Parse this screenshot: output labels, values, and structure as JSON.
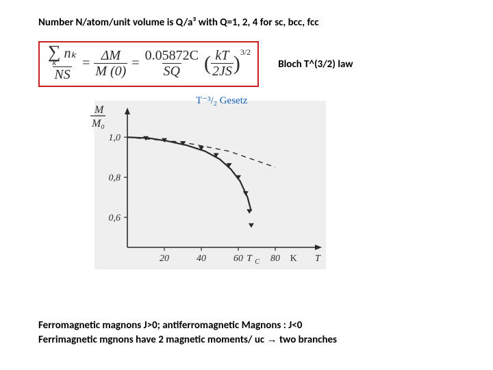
{
  "heading": "Number N/atom/unit volume is Q/a³ with Q=1, 2, 4 for sc, bcc, fcc",
  "formula": {
    "border_color": "#c81e1e",
    "text_color": "#2a2a2a",
    "lhs_num_sigma_sub": "k",
    "lhs_num_rhs": "nₖ",
    "lhs_den": "NS",
    "eq": "=",
    "mid_num": "ΔM",
    "mid_den": "M (0)",
    "rhs_coeff": "0.05872C",
    "rhs_den": "SQ",
    "inner_num": "kT",
    "inner_den": "2JS",
    "exponent": "3/2"
  },
  "side_label": "Bloch T^(3/2) law",
  "handwritten": {
    "text": "T⁻³/₂  Gesetz",
    "color": "#1560b8"
  },
  "graph": {
    "type": "line",
    "y_axis_label": "M",
    "y_axis_label_den": "M₀",
    "y_ticks": [
      0.6,
      0.8,
      1.0
    ],
    "y_tick_labels": [
      "0,6",
      "0,8",
      "1,0"
    ],
    "x_ticks": [
      20,
      40,
      60,
      80
    ],
    "x_tick_labels": [
      "20",
      "40",
      "60",
      "80"
    ],
    "x_unit": "K",
    "x_axis_var": "T",
    "xlim": [
      0,
      100
    ],
    "ylim": [
      0.45,
      1.1
    ],
    "tc_label": "T_C",
    "tc_x": 66,
    "curve_points": [
      {
        "x": 0,
        "y": 1.0
      },
      {
        "x": 12,
        "y": 0.995
      },
      {
        "x": 22,
        "y": 0.98
      },
      {
        "x": 32,
        "y": 0.96
      },
      {
        "x": 42,
        "y": 0.93
      },
      {
        "x": 50,
        "y": 0.89
      },
      {
        "x": 56,
        "y": 0.84
      },
      {
        "x": 61,
        "y": 0.78
      },
      {
        "x": 65,
        "y": 0.7
      },
      {
        "x": 67,
        "y": 0.63
      }
    ],
    "dash_points": [
      {
        "x": 0,
        "y": 1.0
      },
      {
        "x": 30,
        "y": 0.975
      },
      {
        "x": 55,
        "y": 0.93
      },
      {
        "x": 80,
        "y": 0.85
      }
    ],
    "data_markers": [
      {
        "x": 10,
        "y": 0.995
      },
      {
        "x": 20,
        "y": 0.985
      },
      {
        "x": 30,
        "y": 0.97
      },
      {
        "x": 40,
        "y": 0.945
      },
      {
        "x": 48,
        "y": 0.91
      },
      {
        "x": 55,
        "y": 0.86
      },
      {
        "x": 60,
        "y": 0.8
      },
      {
        "x": 64,
        "y": 0.72
      },
      {
        "x": 66,
        "y": 0.63
      },
      {
        "x": 67,
        "y": 0.56
      }
    ],
    "axis_color": "#2a2a2a",
    "curve_color": "#2a2a2a",
    "curve_width": 2.2,
    "dash_color": "#2a2a2a",
    "dash_width": 1.4,
    "marker_color": "#2a2a2a",
    "marker_size": 5,
    "tick_fontsize": 14,
    "background": "#efefef"
  },
  "footer_line1": "Ferromagnetic magnons J>0; antiferromagnetic Magnons : J<0",
  "footer_line2_a": "Ferrimagnetic mgnons have 2 magnetic moments/ uc ",
  "footer_line2_arrow": "→",
  "footer_line2_b": " two branches"
}
